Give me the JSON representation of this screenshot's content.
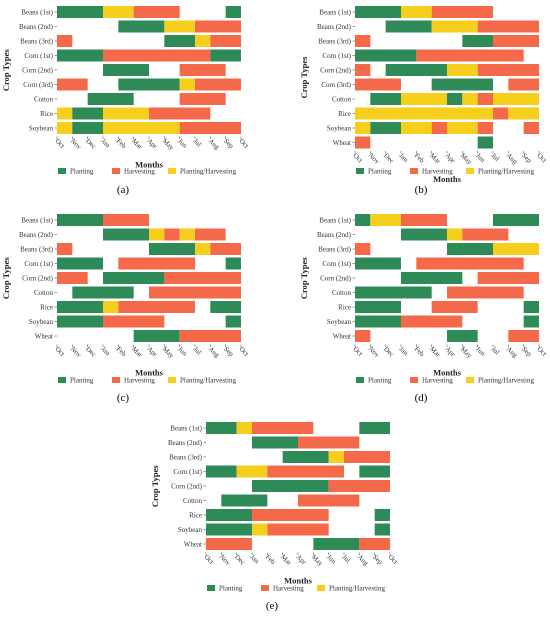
{
  "colors": {
    "planting": "#2e8b57",
    "harvesting": "#f4694a",
    "both": "#f5cf1b"
  },
  "chart_data": [
    {
      "panel_label": "(a)",
      "type": "gantt",
      "xlabel": "Months",
      "ylabel": "Crop Types",
      "months": [
        "Oct",
        "Nov",
        "Dec",
        "Jan",
        "Feb",
        "Mar",
        "Apr",
        "May",
        "Jun",
        "Jul",
        "Aug",
        "Sep",
        "Oct"
      ],
      "legend": [
        "Planting",
        "Harvesting",
        "Planting/Harvesting"
      ],
      "crops": [
        {
          "name": "Beans (1st)",
          "segments": [
            [
              0,
              3,
              "planting"
            ],
            [
              3,
              5,
              "both"
            ],
            [
              5,
              8,
              "harvesting"
            ],
            [
              11,
              12,
              "planting"
            ]
          ]
        },
        {
          "name": "Beans (2nd)",
          "segments": [
            [
              4,
              7,
              "planting"
            ],
            [
              7,
              9,
              "both"
            ],
            [
              9,
              12,
              "harvesting"
            ]
          ]
        },
        {
          "name": "Beans (3rd)",
          "segments": [
            [
              0,
              1,
              "harvesting"
            ],
            [
              7,
              9,
              "planting"
            ],
            [
              9,
              10,
              "both"
            ],
            [
              10,
              12,
              "harvesting"
            ]
          ]
        },
        {
          "name": "Corn (1st)",
          "segments": [
            [
              0,
              3,
              "planting"
            ],
            [
              3,
              10,
              "harvesting"
            ],
            [
              10,
              12,
              "planting"
            ]
          ]
        },
        {
          "name": "Corn (2nd)",
          "segments": [
            [
              3,
              6,
              "planting"
            ],
            [
              8,
              11,
              "harvesting"
            ]
          ]
        },
        {
          "name": "Corn (3rd)",
          "segments": [
            [
              0,
              2,
              "harvesting"
            ],
            [
              4,
              8,
              "planting"
            ],
            [
              8,
              9,
              "both"
            ],
            [
              9,
              12,
              "harvesting"
            ]
          ]
        },
        {
          "name": "Cotton",
          "segments": [
            [
              2,
              5,
              "planting"
            ],
            [
              8,
              11,
              "harvesting"
            ]
          ]
        },
        {
          "name": "Rice",
          "segments": [
            [
              0,
              1,
              "both"
            ],
            [
              1,
              3,
              "planting"
            ],
            [
              3,
              6,
              "both"
            ],
            [
              6,
              10,
              "harvesting"
            ]
          ]
        },
        {
          "name": "Soybean",
          "segments": [
            [
              0,
              1,
              "both"
            ],
            [
              1,
              3,
              "planting"
            ],
            [
              3,
              8,
              "both"
            ],
            [
              8,
              12,
              "harvesting"
            ]
          ]
        }
      ]
    },
    {
      "panel_label": "(b)",
      "type": "gantt",
      "xlabel": "Months",
      "ylabel": "Crop Types",
      "months": [
        "Oct",
        "Nov",
        "Dec",
        "Jan",
        "Feb",
        "Mar",
        "Apr",
        "May",
        "Jun",
        "Jul",
        "Aug",
        "Sep",
        "Oct"
      ],
      "legend": [
        "Planting",
        "Harvesting",
        "Planting/Harvesting"
      ],
      "crops": [
        {
          "name": "Beans (1st)",
          "segments": [
            [
              0,
              3,
              "planting"
            ],
            [
              3,
              5,
              "both"
            ],
            [
              5,
              9,
              "harvesting"
            ]
          ]
        },
        {
          "name": "Beans (2nd)",
          "segments": [
            [
              2,
              5,
              "planting"
            ],
            [
              5,
              8,
              "both"
            ],
            [
              8,
              12,
              "harvesting"
            ]
          ]
        },
        {
          "name": "Beans (3rd)",
          "segments": [
            [
              0,
              1,
              "harvesting"
            ],
            [
              7,
              9,
              "planting"
            ],
            [
              9,
              12,
              "harvesting"
            ]
          ]
        },
        {
          "name": "Corn (1st)",
          "segments": [
            [
              0,
              4,
              "planting"
            ],
            [
              4,
              11,
              "harvesting"
            ]
          ]
        },
        {
          "name": "Corn (2nd)",
          "segments": [
            [
              0,
              1,
              "harvesting"
            ],
            [
              2,
              6,
              "planting"
            ],
            [
              6,
              8,
              "both"
            ],
            [
              8,
              12,
              "harvesting"
            ]
          ]
        },
        {
          "name": "Corn (3rd)",
          "segments": [
            [
              0,
              3,
              "harvesting"
            ],
            [
              5,
              9,
              "planting"
            ],
            [
              10,
              12,
              "harvesting"
            ]
          ]
        },
        {
          "name": "Cotton",
          "segments": [
            [
              1,
              3,
              "planting"
            ],
            [
              3,
              6,
              "both"
            ],
            [
              6,
              7,
              "planting"
            ],
            [
              7,
              8,
              "both"
            ],
            [
              8,
              9,
              "harvesting"
            ],
            [
              9,
              12,
              "both"
            ]
          ]
        },
        {
          "name": "Rice",
          "segments": [
            [
              0,
              9,
              "both"
            ],
            [
              9,
              10,
              "harvesting"
            ],
            [
              10,
              12,
              "both"
            ]
          ]
        },
        {
          "name": "Soybean",
          "segments": [
            [
              0,
              1,
              "both"
            ],
            [
              1,
              3,
              "planting"
            ],
            [
              3,
              5,
              "both"
            ],
            [
              5,
              6,
              "harvesting"
            ],
            [
              6,
              8,
              "both"
            ],
            [
              8,
              9,
              "harvesting"
            ],
            [
              11,
              12,
              "harvesting"
            ]
          ]
        },
        {
          "name": "Wheat",
          "segments": [
            [
              0,
              1,
              "harvesting"
            ],
            [
              8,
              9,
              "planting"
            ]
          ]
        }
      ]
    },
    {
      "panel_label": "(c)",
      "type": "gantt",
      "xlabel": "Months",
      "ylabel": "Crop Types",
      "months": [
        "Oct",
        "Nov",
        "Dec",
        "Jan",
        "Feb",
        "Mar",
        "Apr",
        "May",
        "Jun",
        "Jul",
        "Aug",
        "Sep",
        "Oct"
      ],
      "legend": [
        "Planting",
        "Harvesting",
        "Planting/Harvesting"
      ],
      "crops": [
        {
          "name": "Beans (1st)",
          "segments": [
            [
              0,
              3,
              "planting"
            ],
            [
              3,
              6,
              "harvesting"
            ]
          ]
        },
        {
          "name": "Beans (2nd)",
          "segments": [
            [
              3,
              6,
              "planting"
            ],
            [
              6,
              7,
              "both"
            ],
            [
              7,
              8,
              "harvesting"
            ],
            [
              8,
              9,
              "both"
            ],
            [
              9,
              11,
              "harvesting"
            ]
          ]
        },
        {
          "name": "Beans (3rd)",
          "segments": [
            [
              0,
              1,
              "harvesting"
            ],
            [
              6,
              9,
              "planting"
            ],
            [
              9,
              10,
              "both"
            ],
            [
              10,
              12,
              "harvesting"
            ]
          ]
        },
        {
          "name": "Corn (1st)",
          "segments": [
            [
              0,
              3,
              "planting"
            ],
            [
              4,
              9,
              "harvesting"
            ],
            [
              11,
              12,
              "planting"
            ]
          ]
        },
        {
          "name": "Corn (2nd)",
          "segments": [
            [
              0,
              2,
              "harvesting"
            ],
            [
              3,
              7,
              "planting"
            ],
            [
              7,
              12,
              "harvesting"
            ]
          ]
        },
        {
          "name": "Cotton",
          "segments": [
            [
              1,
              5,
              "planting"
            ],
            [
              6,
              12,
              "harvesting"
            ]
          ]
        },
        {
          "name": "Rice",
          "segments": [
            [
              0,
              3,
              "planting"
            ],
            [
              3,
              4,
              "both"
            ],
            [
              4,
              9,
              "harvesting"
            ],
            [
              10,
              12,
              "planting"
            ]
          ]
        },
        {
          "name": "Soybean",
          "segments": [
            [
              0,
              3,
              "planting"
            ],
            [
              3,
              7,
              "harvesting"
            ],
            [
              11,
              12,
              "planting"
            ]
          ]
        },
        {
          "name": "Wheat",
          "segments": [
            [
              5,
              8,
              "planting"
            ],
            [
              8,
              12,
              "harvesting"
            ]
          ]
        }
      ]
    },
    {
      "panel_label": "(d)",
      "type": "gantt",
      "xlabel": "Months",
      "ylabel": "Crop Types",
      "months": [
        "Oct",
        "Nov",
        "Dec",
        "Jan",
        "Feb",
        "Mar",
        "Apr",
        "May",
        "Jun",
        "Jul",
        "Aug",
        "Sep",
        "Oct"
      ],
      "legend": [
        "Planting",
        "Harvesting",
        "Planting/Harvesting"
      ],
      "crops": [
        {
          "name": "Beans (1st)",
          "segments": [
            [
              0,
              1,
              "planting"
            ],
            [
              1,
              3,
              "both"
            ],
            [
              3,
              6,
              "harvesting"
            ],
            [
              9,
              12,
              "planting"
            ]
          ]
        },
        {
          "name": "Beans (2nd)",
          "segments": [
            [
              3,
              6,
              "planting"
            ],
            [
              6,
              7,
              "both"
            ],
            [
              7,
              10,
              "harvesting"
            ]
          ]
        },
        {
          "name": "Beans (3rd)",
          "segments": [
            [
              0,
              1,
              "harvesting"
            ],
            [
              6,
              9,
              "planting"
            ],
            [
              9,
              12,
              "both"
            ]
          ]
        },
        {
          "name": "Corn (1st)",
          "segments": [
            [
              0,
              3,
              "planting"
            ],
            [
              4,
              11,
              "harvesting"
            ]
          ]
        },
        {
          "name": "Corn (2nd)",
          "segments": [
            [
              3,
              7,
              "planting"
            ],
            [
              8,
              12,
              "harvesting"
            ]
          ]
        },
        {
          "name": "Cotton",
          "segments": [
            [
              0,
              5,
              "planting"
            ],
            [
              6,
              11,
              "harvesting"
            ]
          ]
        },
        {
          "name": "Rice",
          "segments": [
            [
              0,
              3,
              "planting"
            ],
            [
              5,
              8,
              "harvesting"
            ],
            [
              11,
              12,
              "planting"
            ]
          ]
        },
        {
          "name": "Soybean",
          "segments": [
            [
              0,
              3,
              "planting"
            ],
            [
              3,
              7,
              "harvesting"
            ],
            [
              11,
              12,
              "planting"
            ]
          ]
        },
        {
          "name": "Wheat",
          "segments": [
            [
              0,
              1,
              "harvesting"
            ],
            [
              6,
              8,
              "planting"
            ],
            [
              10,
              12,
              "harvesting"
            ]
          ]
        }
      ]
    },
    {
      "panel_label": "(e)",
      "type": "gantt",
      "xlabel": "Months",
      "ylabel": "Crop Types",
      "months": [
        "Oct",
        "Nov",
        "Dec",
        "Jan",
        "Feb",
        "Mar",
        "Apr",
        "May",
        "Jun",
        "Jul",
        "Aug",
        "Sep",
        "Oct"
      ],
      "legend": [
        "Planting",
        "Harvesting",
        "Planting/Harvesting"
      ],
      "crops": [
        {
          "name": "Beans (1st)",
          "segments": [
            [
              0,
              2,
              "planting"
            ],
            [
              2,
              3,
              "both"
            ],
            [
              3,
              7,
              "harvesting"
            ],
            [
              10,
              12,
              "planting"
            ]
          ]
        },
        {
          "name": "Beans (2nd)",
          "segments": [
            [
              3,
              6,
              "planting"
            ],
            [
              6,
              10,
              "harvesting"
            ]
          ]
        },
        {
          "name": "Beans (3rd)",
          "segments": [
            [
              5,
              8,
              "planting"
            ],
            [
              8,
              9,
              "both"
            ],
            [
              9,
              12,
              "harvesting"
            ]
          ]
        },
        {
          "name": "Corn (1st)",
          "segments": [
            [
              0,
              2,
              "planting"
            ],
            [
              2,
              4,
              "both"
            ],
            [
              4,
              9,
              "harvesting"
            ],
            [
              10,
              12,
              "planting"
            ]
          ]
        },
        {
          "name": "Corn (2nd)",
          "segments": [
            [
              3,
              8,
              "planting"
            ],
            [
              8,
              12,
              "harvesting"
            ]
          ]
        },
        {
          "name": "Cotton",
          "segments": [
            [
              1,
              4,
              "planting"
            ],
            [
              6,
              10,
              "harvesting"
            ]
          ]
        },
        {
          "name": "Rice",
          "segments": [
            [
              0,
              3,
              "planting"
            ],
            [
              3,
              8,
              "harvesting"
            ],
            [
              11,
              12,
              "planting"
            ]
          ]
        },
        {
          "name": "Soybean",
          "segments": [
            [
              0,
              3,
              "planting"
            ],
            [
              3,
              4,
              "both"
            ],
            [
              4,
              8,
              "harvesting"
            ],
            [
              11,
              12,
              "planting"
            ]
          ]
        },
        {
          "name": "Wheat",
          "segments": [
            [
              0,
              3,
              "harvesting"
            ],
            [
              7,
              10,
              "planting"
            ],
            [
              10,
              12,
              "harvesting"
            ]
          ]
        }
      ]
    }
  ]
}
